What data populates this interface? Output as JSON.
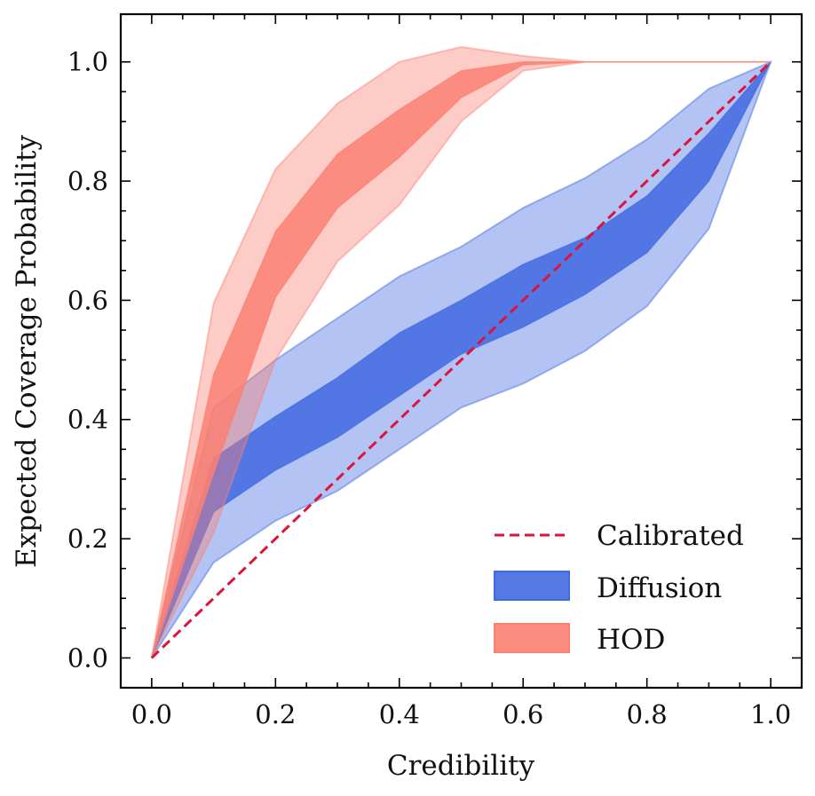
{
  "chart_data": {
    "type": "area",
    "title": "",
    "xlabel": "Credibility",
    "ylabel": "Expected Coverage Probability",
    "xlim": [
      -0.05,
      1.05
    ],
    "ylim": [
      -0.05,
      1.08
    ],
    "xticks": [
      0.0,
      0.2,
      0.4,
      0.6,
      0.8,
      1.0
    ],
    "yticks": [
      0.0,
      0.2,
      0.4,
      0.6,
      0.8,
      1.0
    ],
    "xtick_labels": [
      "0.0",
      "0.2",
      "0.4",
      "0.6",
      "0.8",
      "1.0"
    ],
    "ytick_labels": [
      "0.0",
      "0.2",
      "0.4",
      "0.6",
      "0.8",
      "1.0"
    ],
    "legend_position": "lower-right",
    "x": [
      0.0,
      0.1,
      0.2,
      0.3,
      0.4,
      0.5,
      0.6,
      0.7,
      0.8,
      0.9,
      1.0
    ],
    "series": [
      {
        "name": "Calibrated",
        "kind": "line",
        "style": "dashed",
        "color": "#dc143c",
        "x": [
          0.0,
          1.0
        ],
        "y": [
          0.0,
          1.0
        ]
      },
      {
        "name": "Diffusion",
        "kind": "band",
        "color": "#4169e1",
        "outer_lower": [
          0.0,
          0.16,
          0.23,
          0.28,
          0.35,
          0.42,
          0.46,
          0.515,
          0.59,
          0.72,
          1.0
        ],
        "outer_upper": [
          0.0,
          0.42,
          0.5,
          0.57,
          0.64,
          0.69,
          0.755,
          0.805,
          0.87,
          0.955,
          1.0
        ],
        "inner_lower": [
          0.0,
          0.245,
          0.315,
          0.37,
          0.44,
          0.51,
          0.555,
          0.61,
          0.68,
          0.8,
          1.0
        ],
        "inner_upper": [
          0.0,
          0.335,
          0.405,
          0.47,
          0.545,
          0.6,
          0.66,
          0.705,
          0.775,
          0.88,
          1.0
        ]
      },
      {
        "name": "HOD",
        "kind": "band",
        "color": "#fa8072",
        "outer_lower": [
          0.0,
          0.21,
          0.5,
          0.665,
          0.76,
          0.9,
          0.985,
          1.0,
          1.0,
          1.0,
          1.0
        ],
        "outer_upper": [
          0.0,
          0.595,
          0.82,
          0.93,
          1.0,
          1.025,
          1.01,
          1.0,
          1.0,
          1.0,
          1.0
        ],
        "inner_lower": [
          0.0,
          0.31,
          0.605,
          0.755,
          0.84,
          0.94,
          0.995,
          1.0,
          1.0,
          1.0,
          1.0
        ],
        "inner_upper": [
          0.0,
          0.475,
          0.715,
          0.845,
          0.92,
          0.985,
          1.0,
          1.0,
          1.0,
          1.0,
          1.0
        ]
      }
    ]
  }
}
